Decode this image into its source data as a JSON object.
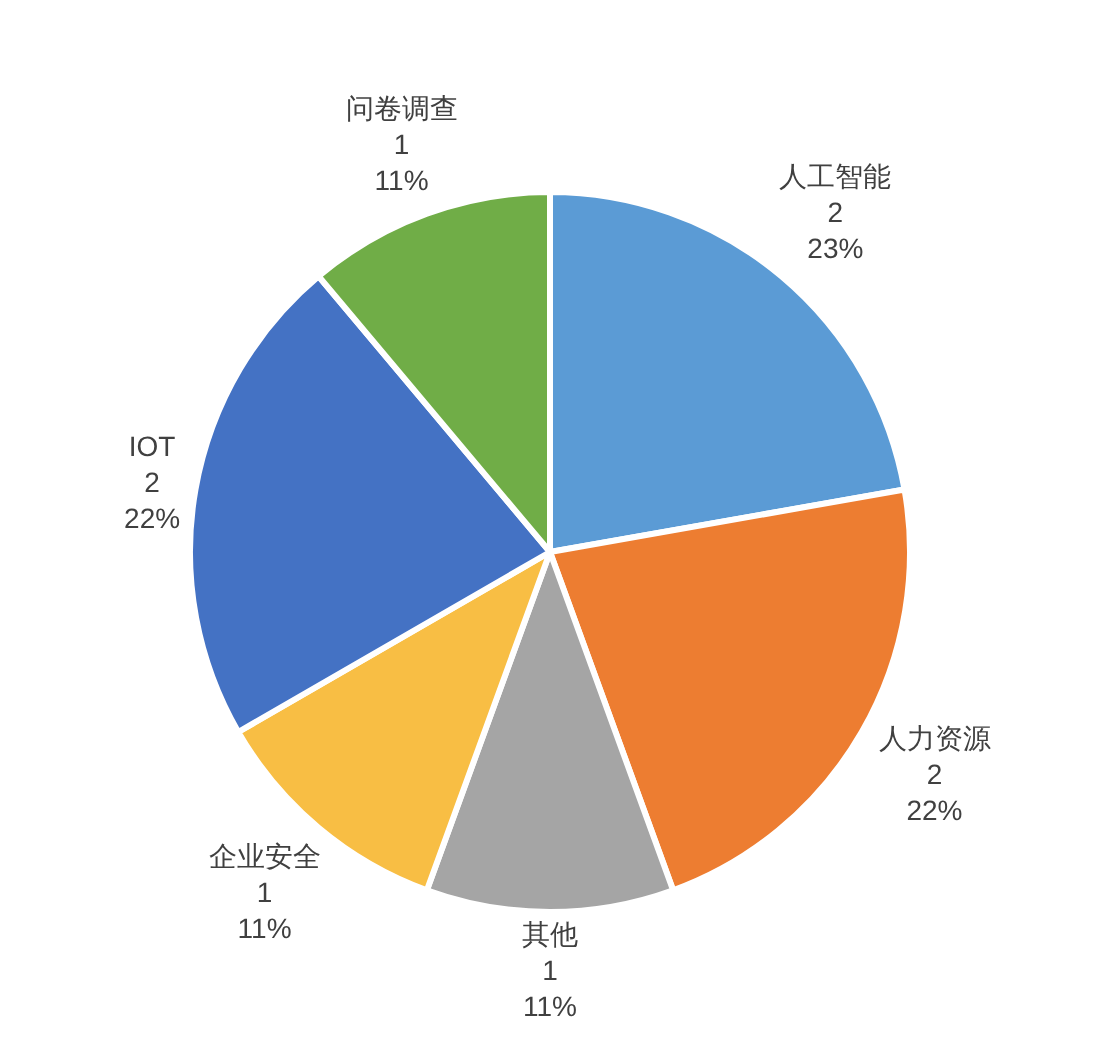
{
  "chart_data": {
    "type": "pie",
    "categories": [
      "人工智能",
      "人力资源",
      "其他",
      "企业安全",
      "IOT",
      "问卷调查"
    ],
    "values": [
      2,
      2,
      1,
      1,
      2,
      1
    ],
    "colors": [
      "#5b9bd5",
      "#ed7d31",
      "#a5a5a5",
      "#f8be44",
      "#4472c4",
      "#70ad47"
    ],
    "value_labels": [
      "2\n23%",
      "2\n22%",
      "1\n11%",
      "1\n11%",
      "2\n22%",
      "1\n11%"
    ]
  }
}
